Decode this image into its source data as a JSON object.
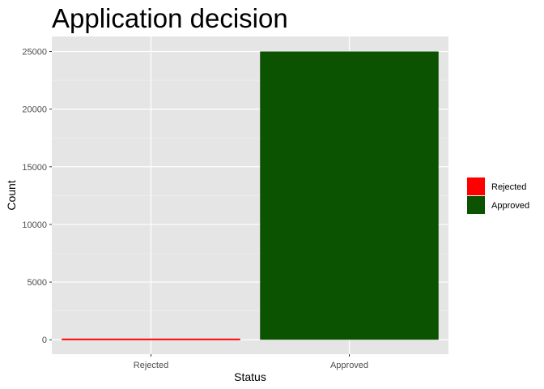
{
  "chart_data": {
    "type": "bar",
    "title": "Application decision",
    "xlabel": "Status",
    "ylabel": "Count",
    "categories": [
      "Rejected",
      "Approved"
    ],
    "values": [
      100,
      25000
    ],
    "colors": [
      "#ff0000",
      "#0b5201"
    ],
    "ylim": [
      -1250,
      26300
    ],
    "yticks": [
      0,
      5000,
      10000,
      15000,
      20000,
      25000
    ],
    "ytick_labels": [
      "0",
      "5000",
      "10000",
      "15000",
      "20000",
      "25000"
    ],
    "grid": true,
    "panel_background": "#e5e5e5",
    "legend": {
      "placement": "right",
      "entries": [
        {
          "label": "Rejected",
          "color": "#ff0000"
        },
        {
          "label": "Approved",
          "color": "#0b5201"
        }
      ]
    }
  }
}
